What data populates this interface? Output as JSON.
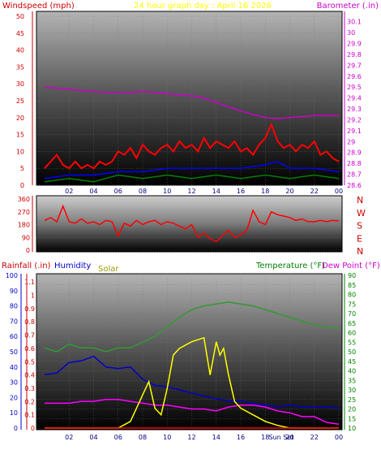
{
  "header": {
    "left_label": "Windspeed (mph)",
    "center_label": "24 hour graph day : April 16 2026",
    "right_label": "Barometer (.in)"
  },
  "colors": {
    "wind_axis": "#cc0000",
    "baro_axis": "#cc00cc",
    "rain_axis": "#cc0000",
    "humidity_axis": "#0000cc",
    "solar_label": "#999900",
    "temp_axis": "#008000",
    "dew_label": "#cc00cc",
    "hour_ticks": "#000080",
    "gust": "#ff0000",
    "avg_wind": "#0000ff",
    "low_wind": "#008000",
    "barometer": "#cc00cc",
    "direction": "#ff0000",
    "temperature": "#339933",
    "humidity": "#0000cc",
    "solar": "#ffff00",
    "dew_point": "#ff00ff",
    "rain": "#ff0000"
  },
  "chart_data": [
    {
      "type": "line",
      "xlabel": "",
      "x_ticks": [
        "02",
        "04",
        "06",
        "08",
        "10",
        "12",
        "14",
        "16",
        "18",
        "20",
        "22",
        "00"
      ],
      "y_label": "Windspeed (mph)",
      "y_ticks": [
        "0",
        "5",
        "10",
        "15",
        "20",
        "25",
        "30",
        "35",
        "40",
        "45",
        "50"
      ],
      "ylim": [
        0,
        50
      ],
      "y2_label": "Barometer (.in)",
      "y2_ticks": [
        "28.6",
        "28.7",
        "28.8",
        "28.9",
        "29",
        "29.1",
        "29.2",
        "29.3",
        "29.4",
        "29.5",
        "29.6",
        "29.7",
        "29.8",
        "29.9",
        "30",
        "30.1"
      ],
      "y2lim": [
        28.6,
        30.15
      ],
      "series": [
        {
          "name": "",
          "axis": "left",
          "color": "#ff0000",
          "x": [
            0,
            1,
            1.5,
            2,
            2.5,
            3,
            3.5,
            4,
            4.5,
            5,
            5.5,
            6,
            6.5,
            7,
            7.5,
            8,
            8.5,
            9,
            9.5,
            10,
            10.5,
            11,
            11.5,
            12,
            12.5,
            13,
            13.5,
            14,
            14.5,
            15,
            15.5,
            16,
            16.5,
            17,
            17.5,
            18,
            18.5,
            19,
            19.5,
            20,
            20.5,
            21,
            21.5,
            22,
            22.5,
            23,
            23.5,
            24
          ],
          "values": [
            5,
            9,
            6,
            5,
            7,
            5,
            6,
            5,
            7,
            6,
            7,
            10,
            9,
            11,
            8,
            12,
            10,
            9,
            11,
            12,
            10,
            13,
            11,
            12,
            10,
            14,
            11,
            13,
            12,
            11,
            13,
            10,
            11,
            9,
            12,
            14,
            18,
            13,
            11,
            12,
            10,
            12,
            11,
            13,
            9,
            10,
            8,
            7
          ]
        },
        {
          "name": "",
          "axis": "left",
          "color": "#0000ff",
          "x": [
            0,
            2,
            4,
            6,
            8,
            10,
            12,
            14,
            16,
            18,
            19,
            20,
            22,
            24
          ],
          "values": [
            2,
            3,
            3,
            4,
            4,
            5,
            5,
            5,
            5,
            6,
            7,
            5,
            5,
            4
          ]
        },
        {
          "name": "",
          "axis": "left",
          "color": "#008000",
          "x": [
            0,
            2,
            4,
            6,
            8,
            10,
            12,
            14,
            16,
            18,
            20,
            22,
            24
          ],
          "values": [
            1,
            2,
            1,
            3,
            2,
            3,
            2,
            3,
            2,
            3,
            2,
            3,
            2
          ]
        },
        {
          "name": "",
          "axis": "right",
          "color": "#cc00cc",
          "x": [
            0,
            1,
            2,
            3,
            4,
            5,
            6,
            7,
            8,
            9,
            10,
            11,
            12,
            13,
            14,
            15,
            16,
            17,
            18,
            19,
            20,
            21,
            22,
            23,
            24
          ],
          "values": [
            29.5,
            29.49,
            29.48,
            29.47,
            29.46,
            29.45,
            29.45,
            29.45,
            29.46,
            29.45,
            29.44,
            29.43,
            29.42,
            29.4,
            29.36,
            29.32,
            29.28,
            29.25,
            29.22,
            29.21,
            29.22,
            29.23,
            29.24,
            29.24,
            29.24
          ]
        }
      ]
    },
    {
      "type": "line",
      "xlabel": "",
      "y_ticks": [
        "360",
        "270",
        "180",
        "90",
        "0"
      ],
      "ylim": [
        0,
        360
      ],
      "compass_labels": [
        "N",
        "W",
        "S",
        "E",
        "N"
      ],
      "series": [
        {
          "name": "",
          "color": "#ff0000",
          "x": [
            0,
            0.5,
            1,
            1.5,
            2,
            2.5,
            3,
            3.5,
            4,
            4.5,
            5,
            5.5,
            6,
            6.5,
            7,
            7.5,
            8,
            8.5,
            9,
            9.5,
            10,
            10.5,
            11,
            11.5,
            12,
            12.5,
            13,
            13.5,
            14,
            14.5,
            15,
            15.5,
            16,
            16.5,
            17,
            17.5,
            18,
            18.5,
            19,
            19.5,
            20,
            20.5,
            21,
            21.5,
            22,
            22.5,
            23,
            23.5,
            24
          ],
          "values": [
            210,
            230,
            200,
            310,
            200,
            190,
            220,
            190,
            200,
            180,
            210,
            200,
            100,
            190,
            170,
            210,
            180,
            200,
            210,
            180,
            200,
            190,
            170,
            150,
            180,
            90,
            120,
            80,
            60,
            100,
            140,
            90,
            110,
            140,
            280,
            200,
            180,
            270,
            250,
            240,
            230,
            210,
            220,
            200,
            200,
            210,
            200,
            210,
            205
          ]
        }
      ]
    },
    {
      "type": "line",
      "xlabel": "",
      "x_ticks": [
        "02",
        "04",
        "06",
        "08",
        "10",
        "12",
        "14",
        "16",
        "18",
        "Sun Set",
        "20",
        "22",
        "00"
      ],
      "extra_x_label": "Sun Set",
      "rain_label": "Rainfall (.in)",
      "rain_ticks": [
        "0",
        "0.1",
        "0.2",
        "0.3",
        "0.4",
        "0.5",
        "0.6",
        "0.7",
        "0.8",
        "0.9",
        "1",
        "1.1"
      ],
      "humidity_label": "Humidity",
      "humidity_ticks": [
        "0",
        "10",
        "20",
        "30",
        "40",
        "50",
        "60",
        "70",
        "80",
        "90",
        "100"
      ],
      "solar_label": "Solar",
      "temp_label": "Temperature (°F)",
      "dew_label": "Dew Point (°F)",
      "temp_ticks": [
        "10",
        "15",
        "20",
        "25",
        "30",
        "35",
        "40",
        "45",
        "50",
        "55",
        "60",
        "65",
        "70",
        "75",
        "80",
        "85",
        "90"
      ],
      "temp_lim": [
        10,
        90
      ],
      "series": [
        {
          "name": "Temperature (°F)",
          "axis": "temp",
          "color": "#339933",
          "x": [
            0,
            1,
            2,
            3,
            4,
            5,
            6,
            7,
            8,
            9,
            10,
            11,
            12,
            13,
            14,
            15,
            16,
            17,
            18,
            19,
            20,
            21,
            22,
            23,
            24
          ],
          "values": [
            52,
            50,
            54,
            52,
            52,
            50,
            52,
            52,
            55,
            58,
            63,
            68,
            72,
            74,
            75,
            76,
            75,
            74,
            72,
            70,
            68,
            66,
            64,
            63,
            62
          ]
        },
        {
          "name": "Humidity",
          "axis": "humidity",
          "color": "#0000cc",
          "x": [
            0,
            1,
            2,
            3,
            4,
            5,
            6,
            7,
            8,
            9,
            10,
            11,
            12,
            13,
            14,
            15,
            16,
            17,
            18,
            19,
            20,
            21,
            22,
            23,
            24
          ],
          "values": [
            35,
            36,
            43,
            44,
            47,
            40,
            39,
            40,
            32,
            28,
            27,
            25,
            23,
            21,
            19,
            18,
            18,
            16,
            15,
            14,
            15,
            14,
            14,
            14,
            13
          ]
        },
        {
          "name": "Dew Point (°F)",
          "axis": "temp",
          "color": "#ff00ff",
          "x": [
            0,
            1,
            2,
            3,
            4,
            5,
            6,
            7,
            8,
            9,
            10,
            11,
            12,
            13,
            14,
            15,
            16,
            17,
            18,
            19,
            20,
            21,
            22,
            23,
            24
          ],
          "values": [
            23,
            23,
            23,
            24,
            24,
            25,
            25,
            24,
            23,
            22,
            22,
            21,
            20,
            20,
            19,
            21,
            22,
            22,
            21,
            19,
            18,
            16,
            16,
            13,
            12
          ]
        },
        {
          "name": "Solar",
          "axis": "rain",
          "color": "#ffff00",
          "x": [
            0,
            6,
            7,
            8,
            8.5,
            9,
            9.5,
            10,
            10.5,
            11,
            12,
            13,
            13.5,
            14,
            14.3,
            14.6,
            15,
            15.5,
            16,
            17,
            18,
            19,
            20,
            24
          ],
          "values": [
            0,
            0,
            0.05,
            0.25,
            0.35,
            0.15,
            0.1,
            0.3,
            0.55,
            0.6,
            0.65,
            0.68,
            0.4,
            0.65,
            0.55,
            0.6,
            0.4,
            0.2,
            0.15,
            0.1,
            0.05,
            0.02,
            0,
            0
          ]
        },
        {
          "name": "Rainfall (.in)",
          "axis": "rain",
          "color": "#ff0000",
          "x": [
            0,
            24
          ],
          "values": [
            0,
            0
          ]
        }
      ]
    }
  ]
}
